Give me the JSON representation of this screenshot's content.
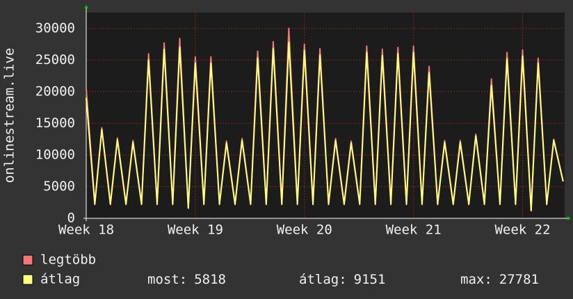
{
  "chart_data": {
    "type": "line",
    "ylabel": "onlinestream.live",
    "x": [
      0,
      0.55,
      1,
      1.55,
      2,
      2.55,
      3,
      3.55,
      4,
      4.55,
      5,
      5.55,
      6,
      6.55,
      7,
      7.55,
      8,
      8.55,
      9,
      9.55,
      10,
      10.55,
      11,
      11.55,
      12,
      12.55,
      13,
      13.55,
      14,
      14.55,
      15,
      15.55,
      16,
      16.55,
      17,
      17.55,
      18,
      18.55,
      19,
      19.55,
      20,
      20.55,
      21,
      21.55,
      22,
      22.55,
      23,
      23.55,
      24,
      24.55,
      25,
      25.55,
      26,
      26.55,
      27,
      27.55,
      28,
      28.55,
      29,
      29.55,
      30,
      30.6
    ],
    "series": [
      {
        "name": "legtöbb",
        "color": "#f07878",
        "values": [
          20500,
          2400,
          14300,
          2400,
          12700,
          2400,
          12300,
          2400,
          26000,
          2400,
          27700,
          2400,
          28400,
          1700,
          25500,
          2400,
          25500,
          2400,
          12200,
          2400,
          12600,
          2400,
          26400,
          2400,
          27900,
          2400,
          30000,
          2400,
          27500,
          2400,
          26800,
          2400,
          12600,
          2400,
          12200,
          2400,
          27200,
          2400,
          26700,
          2400,
          27000,
          2400,
          27200,
          2400,
          24000,
          2400,
          12300,
          2400,
          12300,
          2400,
          13300,
          2400,
          22000,
          2400,
          26200,
          2400,
          26600,
          1400,
          25300,
          2400,
          12500,
          5900
        ]
      },
      {
        "name": "átlag",
        "color": "#ffff80",
        "values": [
          19000,
          2200,
          14000,
          2200,
          12400,
          2200,
          12000,
          2200,
          25000,
          2200,
          26700,
          2200,
          27000,
          1600,
          24500,
          2200,
          24500,
          2200,
          11900,
          2200,
          12300,
          2200,
          25300,
          2200,
          26800,
          2200,
          27781,
          2200,
          26500,
          2200,
          25800,
          2200,
          12300,
          2200,
          11900,
          2200,
          26200,
          2200,
          25700,
          2200,
          26000,
          2200,
          26200,
          2200,
          23000,
          2200,
          12000,
          2200,
          12000,
          2200,
          13000,
          2200,
          21000,
          2200,
          25200,
          2200,
          25600,
          1200,
          24500,
          2200,
          12300,
          5818
        ]
      }
    ],
    "xlim": [
      0,
      30.7
    ],
    "xticks": [
      {
        "value": 0,
        "label": "Week 18"
      },
      {
        "value": 7,
        "label": "Week 19"
      },
      {
        "value": 14,
        "label": "Week 20"
      },
      {
        "value": 21,
        "label": "Week 21"
      },
      {
        "value": 28,
        "label": "Week 22"
      }
    ],
    "ylim": [
      0,
      32500
    ],
    "yticks": [
      0,
      5000,
      10000,
      15000,
      20000,
      25000,
      30000
    ],
    "grid": true,
    "stats": [
      {
        "label": "most:",
        "value": 5818
      },
      {
        "label": "átlag:",
        "value": 9151
      },
      {
        "label": "max:",
        "value": 27781
      }
    ]
  }
}
